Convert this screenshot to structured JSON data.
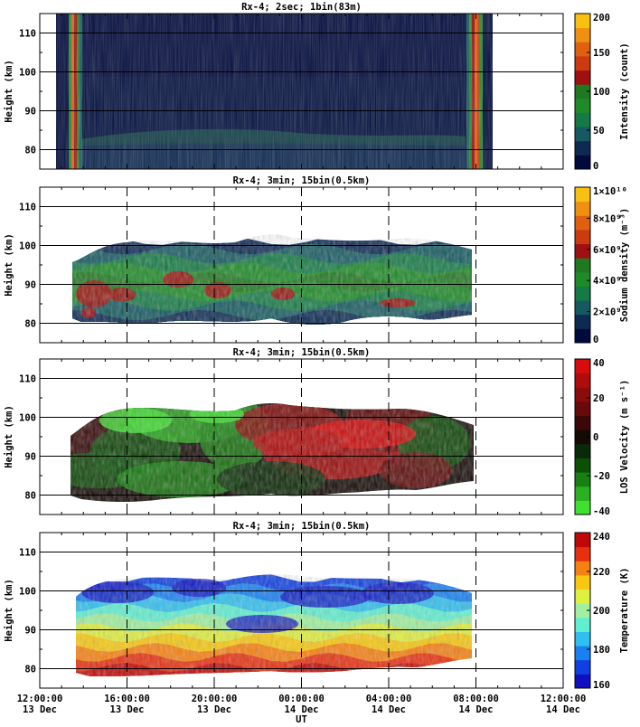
{
  "chart_data": [
    {
      "type": "heatmap",
      "title": "Rx-4;  2sec; 1bin(83m)",
      "ylabel": "Height (km)",
      "ylim": [
        75,
        115
      ],
      "yticks": [
        "80",
        "90",
        "100",
        "110"
      ],
      "colorbar": {
        "label": "Intensity (count)",
        "ticks": [
          "0",
          "50",
          "100",
          "150",
          "200"
        ],
        "colors": [
          "#000a3c",
          "#0d2a52",
          "#155a60",
          "#157a45",
          "#1e8a28",
          "#207820",
          "#a01010",
          "#cc3a10",
          "#e06010",
          "#f09010",
          "#f8c010"
        ]
      }
    },
    {
      "type": "heatmap",
      "title": "Rx-4; 3min; 15bin(0.5km)",
      "ylabel": "Height (km)",
      "ylim": [
        75,
        115
      ],
      "yticks": [
        "80",
        "90",
        "100",
        "110"
      ],
      "colorbar": {
        "label": "Sodium density (m⁻³)",
        "ticks": [
          "0",
          "2×10⁹",
          "4×10⁹",
          "6×10⁹",
          "8×10⁹",
          "1×10¹⁰"
        ],
        "colors": [
          "#000a3c",
          "#0d2a52",
          "#155a60",
          "#157a45",
          "#1e8a28",
          "#207820",
          "#a01010",
          "#cc3a10",
          "#e06010",
          "#f09010",
          "#f8c010"
        ]
      }
    },
    {
      "type": "heatmap",
      "title": "Rx-4; 3min; 15bin(0.5km)",
      "ylabel": "Height (km)",
      "ylim": [
        75,
        115
      ],
      "yticks": [
        "80",
        "90",
        "100",
        "110"
      ],
      "colorbar": {
        "label": "LOS Velocity (m s⁻¹)",
        "ticks": [
          "-40",
          "-20",
          "0",
          "20",
          "40"
        ],
        "colors": [
          "#40e030",
          "#2ab020",
          "#188010",
          "#0c5008",
          "#082a06",
          "#140a06",
          "#3a0808",
          "#660a0a",
          "#8c0c0c",
          "#b00c0c",
          "#d80c0c"
        ]
      }
    },
    {
      "type": "heatmap",
      "title": "Rx-4; 3min; 15bin(0.5km)",
      "ylabel": "Height (km)",
      "ylim": [
        75,
        115
      ],
      "yticks": [
        "80",
        "90",
        "100",
        "110"
      ],
      "xlabel": "UT",
      "xticks": [
        {
          "time": "12:00:00",
          "date": "13 Dec"
        },
        {
          "time": "16:00:00",
          "date": "13 Dec"
        },
        {
          "time": "20:00:00",
          "date": "13 Dec"
        },
        {
          "time": "00:00:00",
          "date": "14 Dec"
        },
        {
          "time": "04:00:00",
          "date": "14 Dec"
        },
        {
          "time": "08:00:00",
          "date": "14 Dec"
        },
        {
          "time": "12:00:00",
          "date": "14 Dec"
        }
      ],
      "colorbar": {
        "label": "Temperature (K)",
        "ticks": [
          "160",
          "180",
          "200",
          "220",
          "240"
        ],
        "colors": [
          "#1010c0",
          "#1040e0",
          "#1880f0",
          "#30c0f0",
          "#60f0d0",
          "#a0f0a0",
          "#e0f040",
          "#f8c810",
          "#f88010",
          "#e83010",
          "#c00808"
        ]
      }
    }
  ]
}
